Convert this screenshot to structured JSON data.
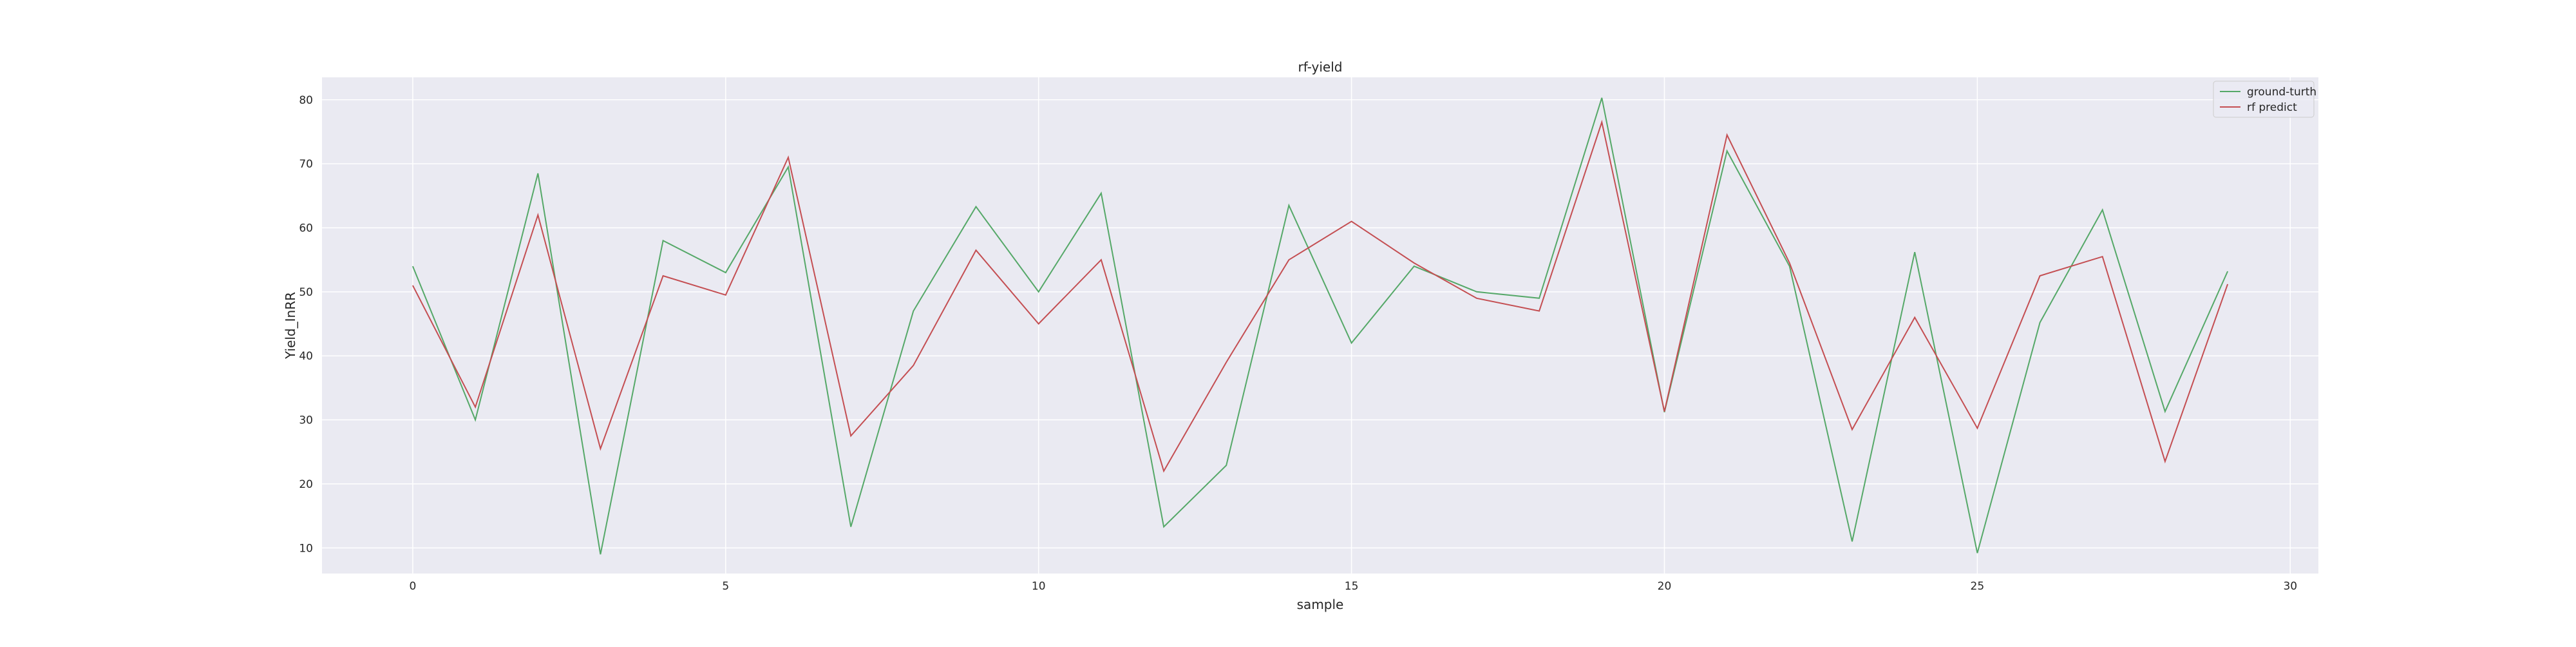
{
  "chart_data": {
    "type": "line",
    "title": "rf-yield",
    "xlabel": "sample",
    "ylabel": "Yield_InRR",
    "xlim": [
      -1.45,
      30.45
    ],
    "ylim": [
      6,
      83.5
    ],
    "xticks": [
      0,
      5,
      10,
      15,
      20,
      25,
      30
    ],
    "yticks": [
      10,
      20,
      30,
      40,
      50,
      60,
      70,
      80
    ],
    "grid": true,
    "legend_position": "top-right",
    "background_color": "#eaeaf2",
    "x": [
      0,
      1,
      2,
      3,
      4,
      5,
      6,
      7,
      8,
      9,
      10,
      11,
      12,
      13,
      14,
      15,
      16,
      17,
      18,
      19,
      20,
      21,
      22,
      23,
      24,
      25,
      26,
      27,
      28,
      29
    ],
    "series": [
      {
        "name": "ground-turth",
        "color": "#55a868",
        "values": [
          54.0,
          30.0,
          68.5,
          9.0,
          58.0,
          53.0,
          69.5,
          13.3,
          47.0,
          63.3,
          50.0,
          65.4,
          13.3,
          22.9,
          63.5,
          42.0,
          54.0,
          50.0,
          49.0,
          80.3,
          31.2,
          72.0,
          54.0,
          11.0,
          56.2,
          9.2,
          45.2,
          62.8,
          31.3,
          53.2
        ]
      },
      {
        "name": "rf predict",
        "color": "#c44e52",
        "values": [
          51.0,
          32.0,
          62.0,
          25.5,
          52.5,
          49.5,
          71.0,
          27.5,
          38.5,
          56.5,
          45.0,
          55.0,
          22.0,
          39.0,
          55.0,
          61.0,
          54.5,
          49.0,
          47.0,
          76.5,
          31.3,
          74.5,
          54.5,
          28.5,
          46.0,
          28.7,
          52.5,
          55.5,
          23.5,
          51.2
        ]
      }
    ]
  }
}
